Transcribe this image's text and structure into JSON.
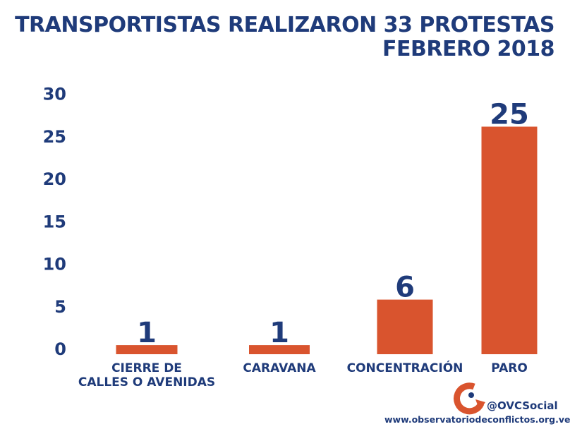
{
  "chart_data": {
    "type": "bar",
    "title": "TRANSPORTISTAS REALIZARON 33 PROTESTAS",
    "subtitle": "FEBRERO 2018",
    "categories": [
      "CIERRE DE CALLES O AVENIDAS",
      "CARAVANA",
      "CONCENTRACIÓN",
      "PARO"
    ],
    "category_lines": [
      [
        "CIERRE DE",
        "CALLES O AVENIDAS"
      ],
      [
        "CARAVANA"
      ],
      [
        "CONCENTRACIÓN"
      ],
      [
        "PARO"
      ]
    ],
    "values": [
      1,
      1,
      6,
      25
    ],
    "yticks": [
      0,
      5,
      10,
      15,
      20,
      25,
      30
    ],
    "ylim": [
      0,
      30
    ],
    "xlabel": "",
    "ylabel": "",
    "grid": false,
    "colors": {
      "bar": "#d9542e",
      "text": "#1f3b7a"
    }
  },
  "footer": {
    "handle": "@OVCSocial",
    "url": "www.observatoriodeconflictos.org.ve"
  }
}
